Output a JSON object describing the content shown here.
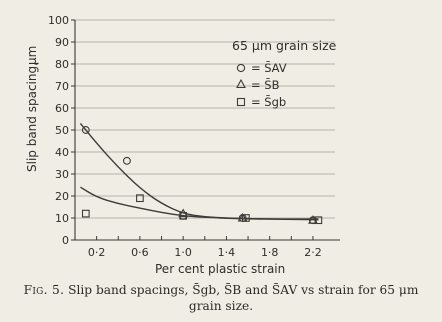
{
  "caption": {
    "figure_number": "Fig. 5.",
    "text": "Slip band spacings, S̄gb, S̄B and S̄AV vs strain for 65 μm grain size."
  },
  "chart_data": {
    "type": "scatter",
    "title": "65 μm grain size",
    "xlabel": "Per cent plastic strain",
    "ylabel": "Slip band spacing,",
    "ylabel_unit": "μm",
    "xlim": [
      0,
      2.4
    ],
    "ylim": [
      0,
      100
    ],
    "x_ticks": [
      0.2,
      0.6,
      1.0,
      1.4,
      1.8,
      2.2
    ],
    "x_tick_labels": [
      "0·2",
      "0·6",
      "1·0",
      "1·4",
      "1·8",
      "2·2"
    ],
    "y_ticks": [
      0,
      10,
      20,
      30,
      40,
      50,
      60,
      70,
      80,
      90,
      100
    ],
    "y_tick_labels": [
      "0",
      "10",
      "20",
      "30",
      "40",
      "50",
      "60",
      "70",
      "80",
      "90",
      "100"
    ],
    "grid": "horizontal",
    "legend_position": "top-right",
    "series": [
      {
        "name": "= S̄AV",
        "marker": "circle",
        "points": [
          [
            0.1,
            50
          ],
          [
            0.48,
            36
          ],
          [
            1.0,
            11
          ],
          [
            1.55,
            10
          ],
          [
            2.2,
            9
          ]
        ],
        "curve": [
          [
            0.05,
            53
          ],
          [
            0.2,
            44
          ],
          [
            0.4,
            33
          ],
          [
            0.6,
            23.5
          ],
          [
            0.8,
            16.5
          ],
          [
            1.0,
            12
          ],
          [
            1.2,
            10.5
          ],
          [
            1.4,
            10
          ],
          [
            1.8,
            9.5
          ],
          [
            2.25,
            9.5
          ]
        ]
      },
      {
        "name": "= S̄B",
        "marker": "triangle",
        "points": [
          [
            1.0,
            12
          ],
          [
            1.55,
            10
          ],
          [
            2.2,
            9
          ]
        ],
        "curve": []
      },
      {
        "name": "= S̄gb",
        "marker": "square",
        "points": [
          [
            0.1,
            12
          ],
          [
            0.6,
            19
          ],
          [
            1.0,
            11
          ],
          [
            1.58,
            10
          ],
          [
            2.25,
            9
          ]
        ],
        "curve": [
          [
            0.05,
            24
          ],
          [
            0.2,
            19.5
          ],
          [
            0.4,
            16.5
          ],
          [
            0.6,
            14.5
          ],
          [
            0.8,
            12.5
          ],
          [
            1.0,
            11
          ],
          [
            1.2,
            10.3
          ],
          [
            1.5,
            9.7
          ],
          [
            2.0,
            9.3
          ],
          [
            2.25,
            9.2
          ]
        ]
      }
    ]
  }
}
